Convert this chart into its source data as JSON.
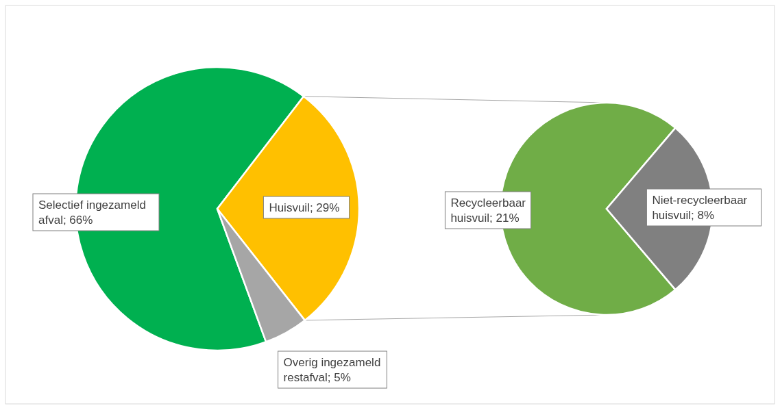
{
  "chart_data": [
    {
      "type": "pie",
      "categories": [
        "Selectief ingezameld afval",
        "Huisvuil",
        "Overig ingezameld restafval"
      ],
      "values": [
        66,
        29,
        5
      ],
      "colors": [
        "#00b050",
        "#ffc000",
        "#a6a6a6"
      ],
      "value_labels": [
        "66%",
        "29%",
        "5%"
      ]
    },
    {
      "type": "pie",
      "categories": [
        "Recycleerbaar huisvuil",
        "Niet-recycleerbaar huisvuil"
      ],
      "values": [
        21,
        8
      ],
      "colors": [
        "#70ad47",
        "#808080"
      ],
      "value_labels": [
        "21%",
        "8%"
      ]
    }
  ]
}
